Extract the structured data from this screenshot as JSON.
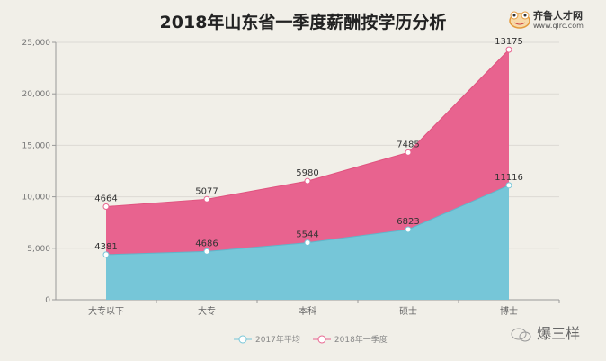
{
  "chart_data": {
    "type": "area",
    "stacked": true,
    "title": "2018年山东省一季度薪酬按学历分析",
    "categories": [
      "大专以下",
      "大专",
      "本科",
      "硕士",
      "博士"
    ],
    "series": [
      {
        "name": "2017年平均",
        "values": [
          4381,
          4686,
          5544,
          6823,
          11116
        ],
        "color": "#76c6d8"
      },
      {
        "name": "2018年一季度",
        "values": [
          4664,
          5077,
          5980,
          7485,
          13175
        ],
        "color": "#e8638f"
      }
    ],
    "ylim": [
      0,
      25000
    ],
    "yticks": [
      "0",
      "5,000",
      "10,000",
      "15,000",
      "20,000",
      "25,000"
    ],
    "grid": true,
    "legend": "bottom"
  },
  "logo": {
    "name": "齐鲁人才网",
    "url_text": "www.qlrc.com"
  },
  "watermark": "爆三样"
}
